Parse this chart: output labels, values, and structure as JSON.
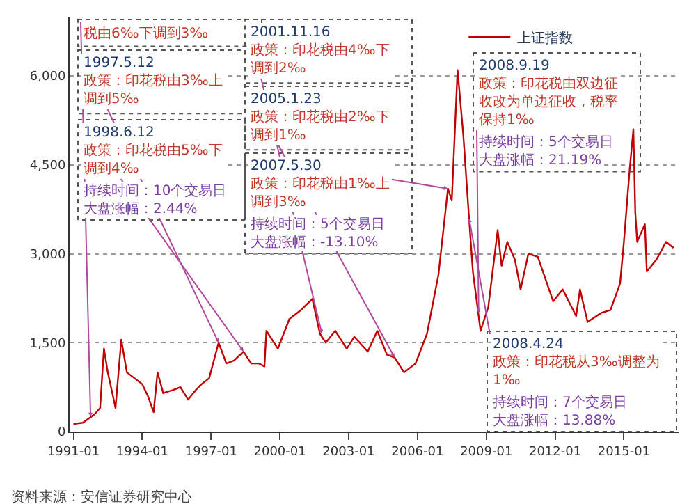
{
  "chart_data": {
    "type": "line",
    "legend": "top",
    "grid": "y",
    "marker": "none",
    "line_style": "solid",
    "xlim": [
      "1990-11",
      "2017-06"
    ],
    "ylim": [
      0,
      7000
    ],
    "xticks": [
      {
        "value": "1991-01",
        "label": "1991-01"
      },
      {
        "value": "1994-01",
        "label": "1994-01"
      },
      {
        "value": "1997-01",
        "label": "1997-01"
      },
      {
        "value": "2000-01",
        "label": "2000-01"
      },
      {
        "value": "2003-01",
        "label": "2003-01"
      },
      {
        "value": "2006-01",
        "label": "2006-01"
      },
      {
        "value": "2009-01",
        "label": "2009-01"
      },
      {
        "value": "2012-01",
        "label": "2012-01"
      },
      {
        "value": "2015-01",
        "label": "2015-01"
      }
    ],
    "yticks": [
      {
        "value": 0,
        "label": "0"
      },
      {
        "value": 1500,
        "label": "1,500"
      },
      {
        "value": 3000,
        "label": "3,000"
      },
      {
        "value": 4500,
        "label": "4,500"
      },
      {
        "value": 6000,
        "label": "6,000"
      }
    ],
    "x": [
      "1991-01",
      "1991-06",
      "1991-12",
      "1992-03",
      "1992-05",
      "1992-07",
      "1992-11",
      "1993-02",
      "1993-05",
      "1993-09",
      "1994-01",
      "1994-04",
      "1994-07",
      "1994-09",
      "1994-12",
      "1995-05",
      "1995-09",
      "1996-01",
      "1996-05",
      "1996-08",
      "1996-12",
      "1997-05",
      "1997-09",
      "1998-01",
      "1998-06",
      "1998-10",
      "1999-02",
      "1999-05",
      "1999-06",
      "1999-12",
      "2000-06",
      "2000-12",
      "2001-06",
      "2001-10",
      "2002-01",
      "2002-06",
      "2002-12",
      "2003-04",
      "2003-11",
      "2004-04",
      "2004-09",
      "2005-01",
      "2005-06",
      "2005-12",
      "2006-06",
      "2006-12",
      "2007-05",
      "2007-07",
      "2007-10",
      "2008-01",
      "2008-04",
      "2008-06",
      "2008-10",
      "2009-02",
      "2009-07",
      "2009-09",
      "2009-12",
      "2010-04",
      "2010-07",
      "2010-11",
      "2011-04",
      "2011-12",
      "2012-05",
      "2012-12",
      "2013-02",
      "2013-06",
      "2014-01",
      "2014-06",
      "2014-11",
      "2015-01",
      "2015-04",
      "2015-06",
      "2015-07",
      "2015-08",
      "2015-12",
      "2016-01",
      "2016-06",
      "2016-11",
      "2017-03"
    ],
    "series": [
      {
        "name": "上证指数",
        "color": "#c00000",
        "values": [
          130,
          150,
          290,
          400,
          1400,
          1000,
          400,
          1550,
          1000,
          900,
          800,
          600,
          330,
          1000,
          650,
          700,
          750,
          540,
          700,
          800,
          900,
          1500,
          1150,
          1200,
          1350,
          1150,
          1150,
          1100,
          1700,
          1400,
          1900,
          2050,
          2240,
          1650,
          1500,
          1700,
          1400,
          1600,
          1350,
          1700,
          1300,
          1250,
          1000,
          1150,
          1650,
          2650,
          4100,
          3900,
          6100,
          5000,
          3600,
          2700,
          1700,
          2100,
          3400,
          2800,
          3200,
          2900,
          2400,
          3000,
          2950,
          2200,
          2400,
          1950,
          2400,
          1850,
          2000,
          2050,
          2500,
          3200,
          4400,
          5100,
          3700,
          3200,
          3500,
          2700,
          2900,
          3200,
          3100
        ]
      }
    ],
    "annotations": [
      "资料来源：安信证券研究中心",
      {
        "text": "税由6‰下调到3‰",
        "x": "1991-10",
        "y": 250
      },
      {
        "text": "1997.5.12\n政策：印花税由3‰上调到5‰",
        "x": "1997-05",
        "y": 1500
      },
      {
        "text": "2001.11.16\n政策：印花税由4‰下调到2‰",
        "x": "2001-11",
        "y": 1650
      },
      {
        "text": "2005.1.23\n政策：印花税由2‰下调到1‰",
        "x": "2005-01",
        "y": 1250
      },
      {
        "text": "1998.6.12\n政策：印花税由5‰下调到4‰",
        "x": "1998-06",
        "y": 1350
      },
      "持续时间：10个交易日",
      "大盘涨幅：2.44%",
      {
        "text": "2007.5.30\n政策：印花税由1‰上调到3‰",
        "x": "2007-05",
        "y": 4100
      },
      "持续时间：5个交易日",
      "大盘涨幅：-13.10%",
      {
        "text": "2008.4.24\n政策：印花税从3‰调整为1‰",
        "x": "2008-04",
        "y": 3600
      },
      "持续时间：7个交易日",
      "大盘涨幅：13.88%",
      {
        "text": "2008.9.19\n政策：印花税由双边征收改为单边征收，税率保持1‰",
        "x": "2008-09",
        "y": 2000
      },
      "持续时间：5个交易日",
      "大盘涨幅：21.19%"
    ]
  }
}
